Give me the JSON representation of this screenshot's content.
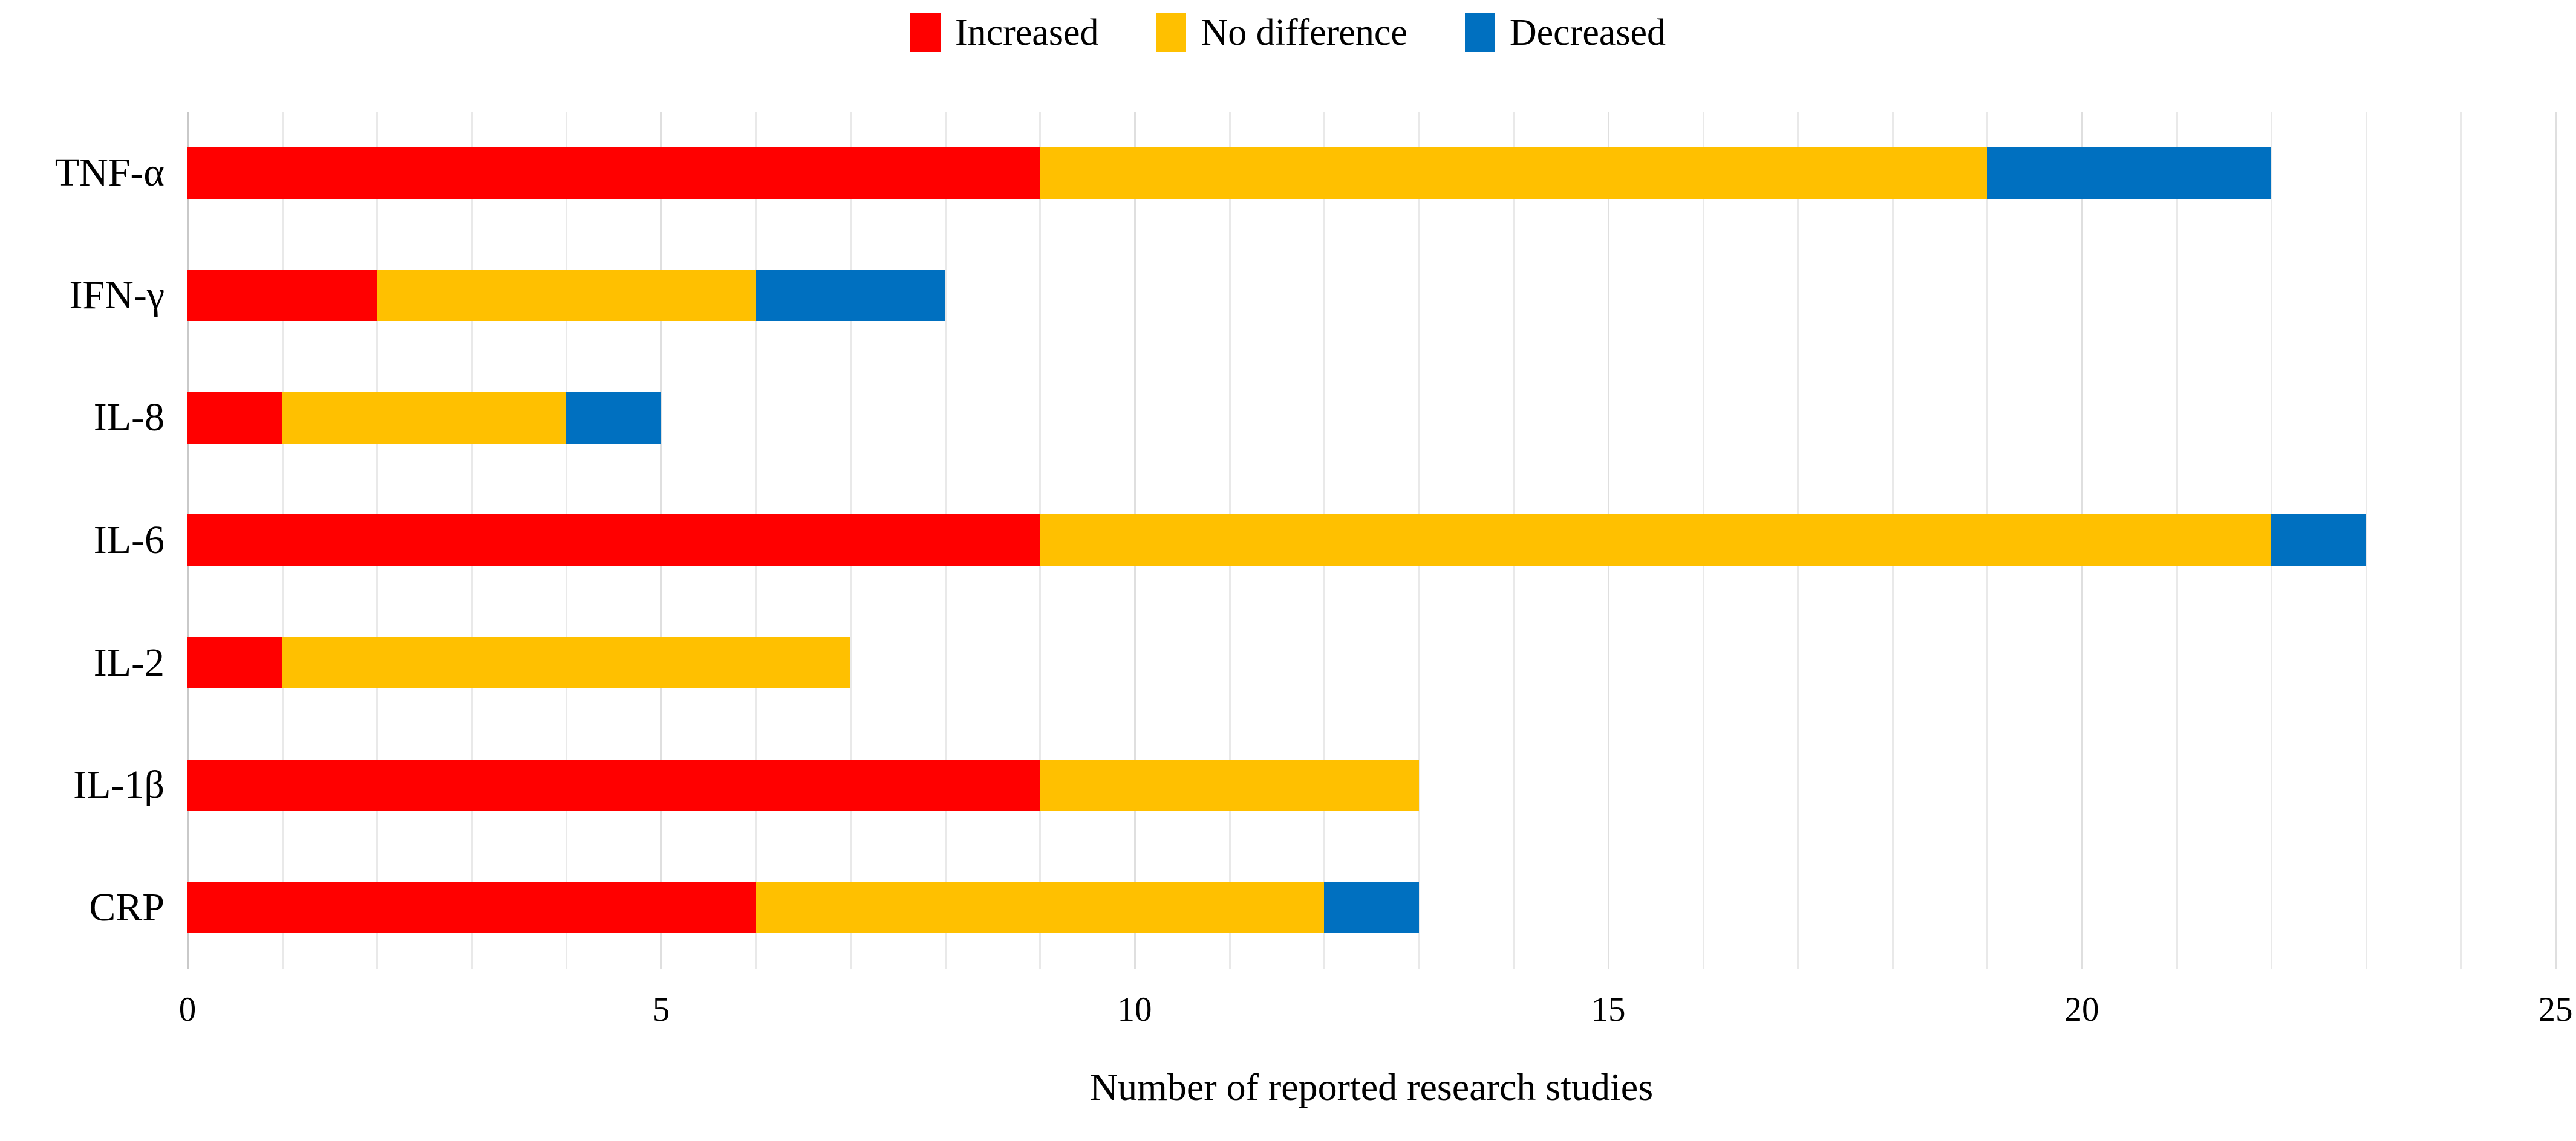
{
  "chart_data": {
    "type": "bar",
    "orientation": "horizontal",
    "stacked": true,
    "title": "",
    "xlabel": "Number of reported research studies",
    "ylabel": "",
    "xlim": [
      0,
      25
    ],
    "x_ticks": [
      0,
      5,
      10,
      15,
      20,
      25
    ],
    "minor_grid_step": 1,
    "grid": true,
    "legend_position": "top-center",
    "categories": [
      "TNF-α",
      "IFN-γ",
      "IL-8",
      "IL-6",
      "IL-2",
      "IL-1β",
      "CRP"
    ],
    "series": [
      {
        "name": "Increased",
        "color": "#FF0000",
        "values": [
          9,
          2,
          1,
          9,
          1,
          9,
          6
        ]
      },
      {
        "name": "No difference",
        "color": "#FFC000",
        "values": [
          10,
          4,
          3,
          13,
          6,
          4,
          6
        ]
      },
      {
        "name": "Decreased",
        "color": "#0070C0",
        "values": [
          3,
          2,
          1,
          1,
          0,
          0,
          1
        ]
      }
    ],
    "totals": {
      "TNF-α": 22,
      "IFN-γ": 8,
      "IL-8": 5,
      "IL-6": 23,
      "IL-2": 7,
      "IL-1β": 13,
      "CRP": 13
    },
    "colors": {
      "background": "#FFFFFF",
      "gridline": "#E9E9E9",
      "axis_line": "#C9C9C9",
      "text": "#000000"
    }
  }
}
